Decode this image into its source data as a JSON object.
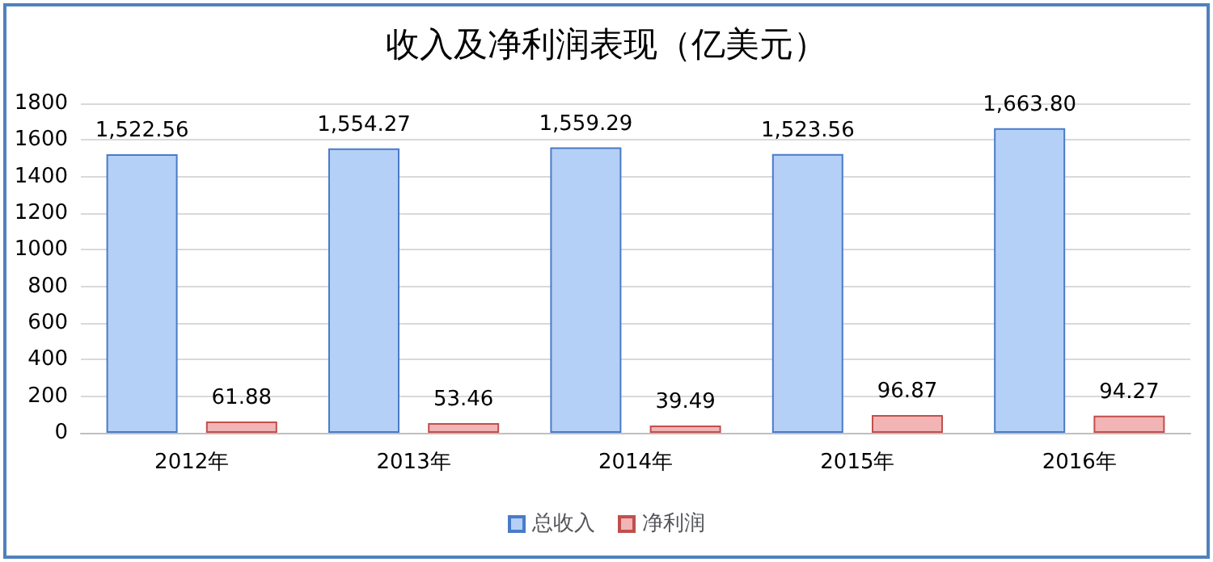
{
  "chart_data": {
    "type": "bar",
    "title": "收入及净利润表现（亿美元）",
    "categories": [
      "2012年",
      "2013年",
      "2014年",
      "2015年",
      "2016年"
    ],
    "series": [
      {
        "name": "总收入",
        "color": "#b4d0f7",
        "values": [
          1522.56,
          1554.27,
          1559.29,
          1523.56,
          1663.8
        ],
        "value_labels": [
          "1,522.56",
          "1,554.27",
          "1,559.29",
          "1,523.56",
          "1,663.80"
        ]
      },
      {
        "name": "净利润",
        "color": "#f2b4b4",
        "values": [
          61.88,
          53.46,
          39.49,
          96.87,
          94.27
        ],
        "value_labels": [
          "61.88",
          "53.46",
          "39.49",
          "96.87",
          "94.27"
        ]
      }
    ],
    "ylim": [
      0,
      1800
    ],
    "yticks": [
      0,
      200,
      400,
      600,
      800,
      1000,
      1200,
      1400,
      1600,
      1800
    ],
    "grid": "y",
    "legend": "bottom"
  }
}
